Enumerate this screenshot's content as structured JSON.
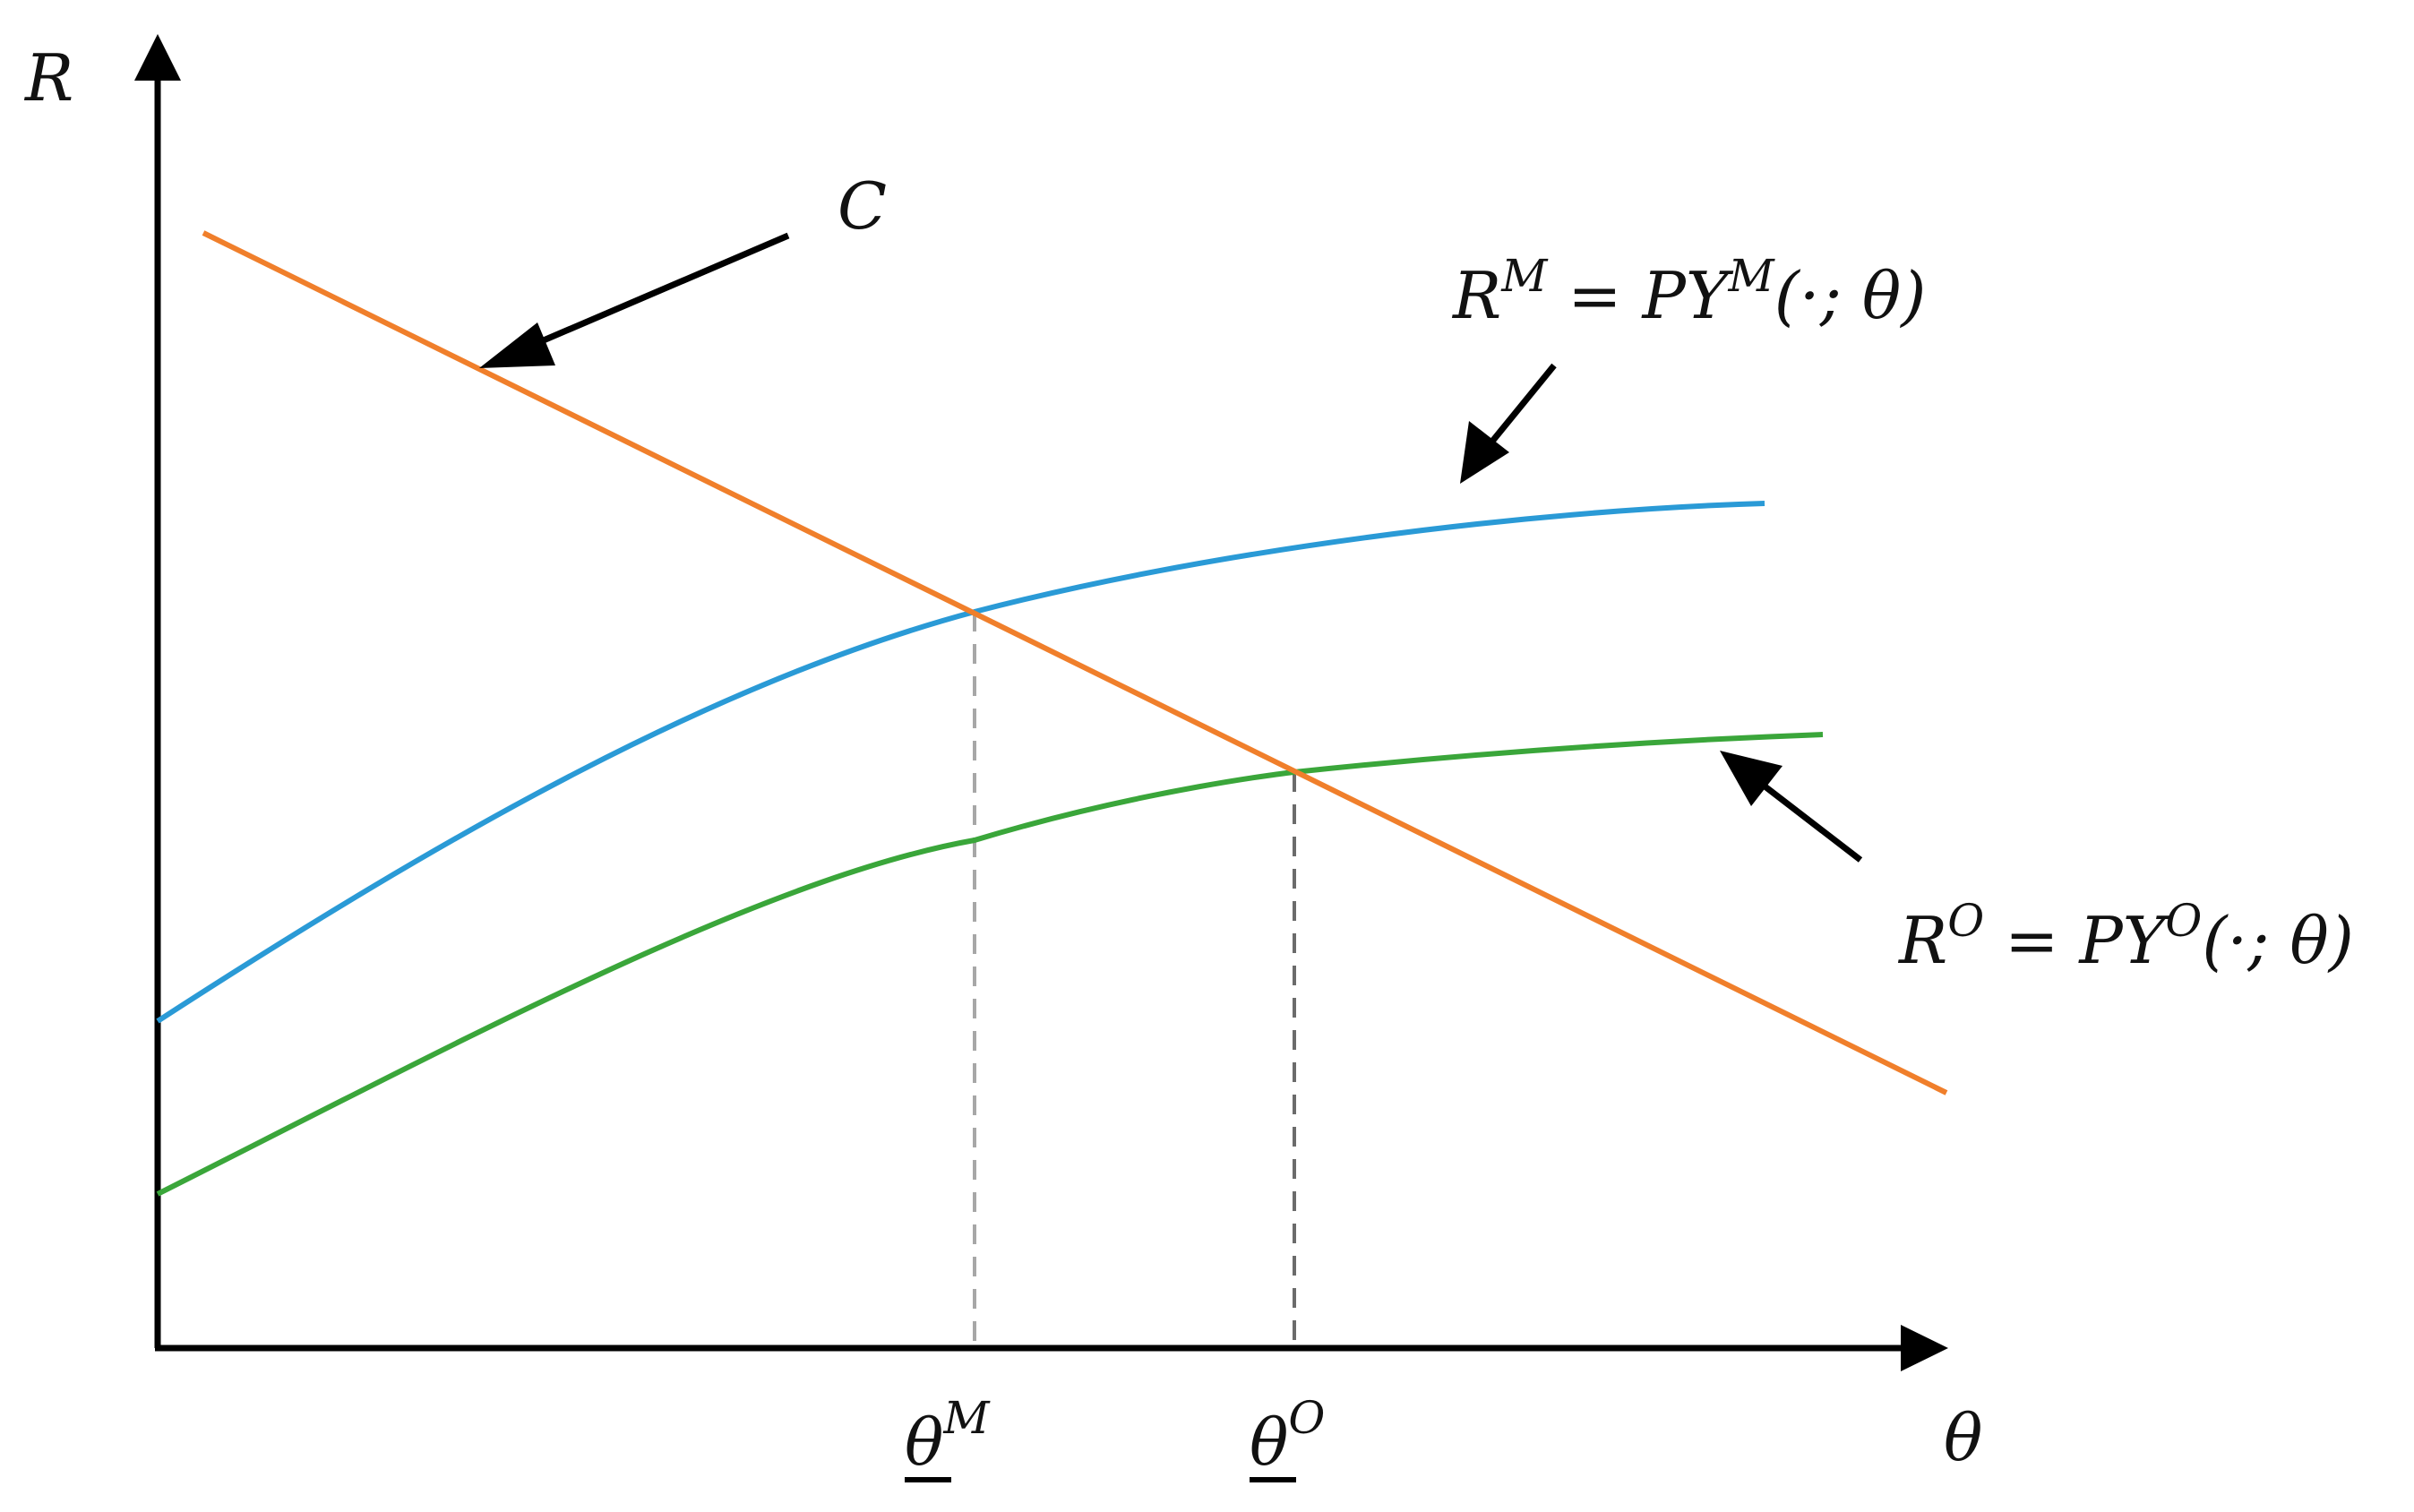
{
  "colors": {
    "axis": "#000000",
    "cost_line": "#f07f2b",
    "curve_m": "#2a9ad6",
    "curve_o": "#3aa63a",
    "guide_m": "#a7a7a7",
    "guide_o": "#6b6b6b"
  },
  "axes": {
    "y_label": "R",
    "x_label": "θ"
  },
  "labels": {
    "cost": "C",
    "rm": {
      "base": "R",
      "sup": "M",
      "eq": " = ",
      "rhs_base": "PY",
      "rhs_sup": "M",
      "args": "(·; θ)"
    },
    "ro": {
      "base": "R",
      "sup": "O",
      "eq": " = ",
      "rhs_base": "PY",
      "rhs_sup": "O",
      "args": "(·; θ)"
    },
    "theta_m": {
      "base": "θ",
      "sup": "M"
    },
    "theta_o": {
      "base": "θ",
      "sup": "O"
    }
  }
}
